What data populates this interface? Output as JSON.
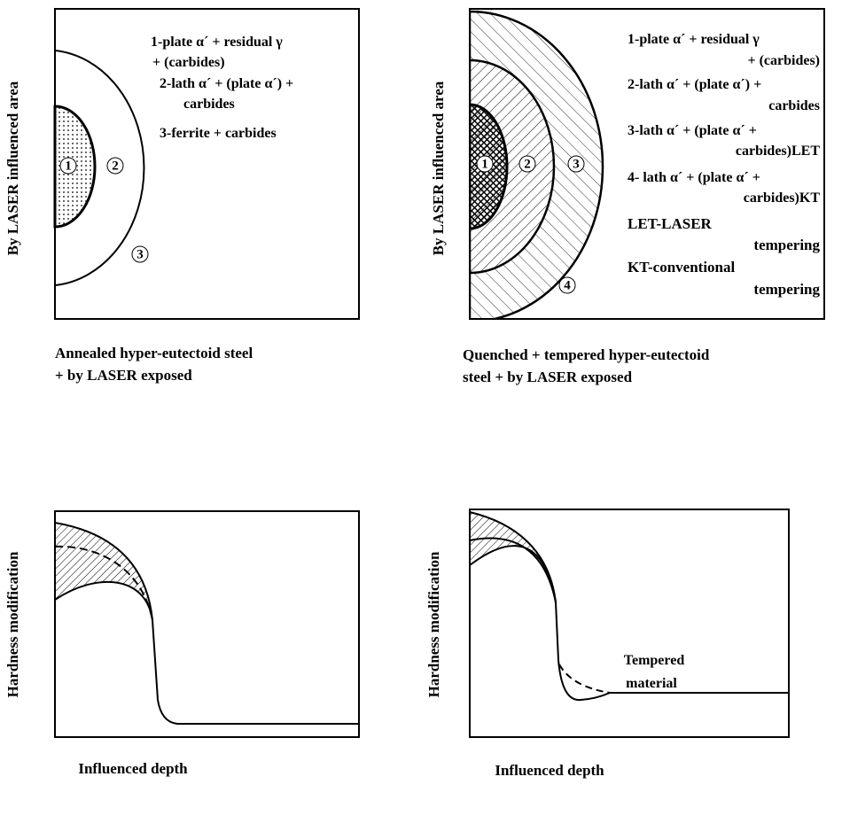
{
  "panels": [
    {
      "y_label": "By LASER influenced area",
      "legend": [
        "1-plate α´ + residual γ",
        "+ (carbides)",
        "2-lath α´ + (plate α´) +",
        "carbides",
        "3-ferrite  + carbides"
      ],
      "region_labels": [
        "1",
        "2",
        "3"
      ],
      "caption": [
        "Annealed hyper-eutectoid steel",
        "+ by LASER exposed"
      ]
    },
    {
      "y_label": "By LASER influenced area",
      "legend": [
        "1-plate α´ + residual γ",
        "+ (carbides)",
        "2-lath α´ + (plate α´) +",
        "carbides",
        "3-lath α´ + (plate α´ +",
        "carbides)LET",
        "4- lath α´ + (plate α´ +",
        "carbides)KT",
        "LET-LASER",
        "tempering",
        "KT-conventional",
        "tempering"
      ],
      "region_labels": [
        "1",
        "2",
        "3",
        "4"
      ],
      "caption": [
        "Quenched + tempered  hyper-eutectoid",
        "steel + by LASER exposed"
      ]
    },
    {
      "y_label": "Hardness modification",
      "x_label": "Influenced depth"
    },
    {
      "y_label": "Hardness modification",
      "x_label": "Influenced depth",
      "annotation": [
        "Tempered",
        "material"
      ]
    }
  ]
}
